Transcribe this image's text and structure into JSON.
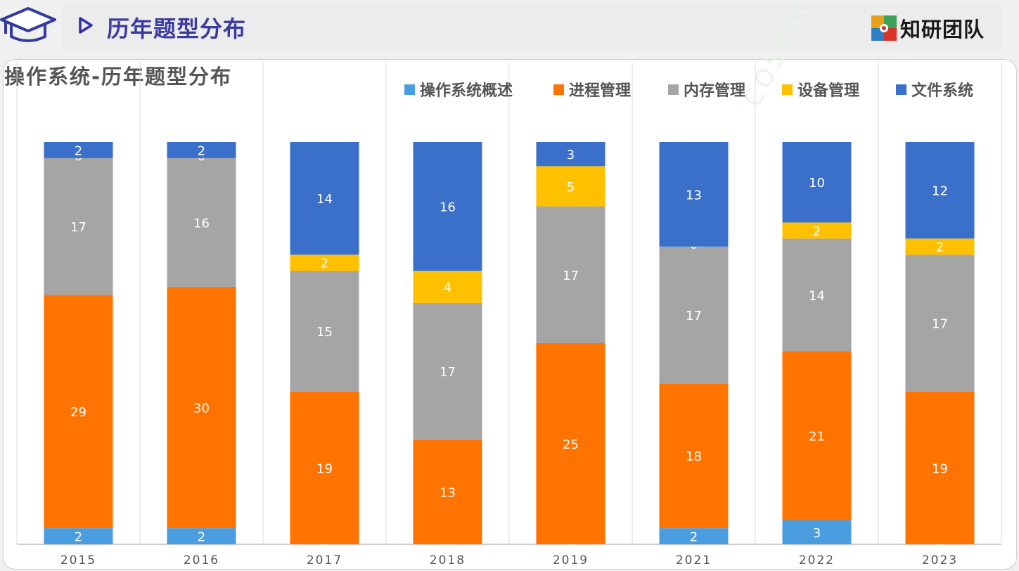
{
  "header": {
    "title": "历年题型分布",
    "brand_name": "知研团队"
  },
  "watermark_text": "COSKAOEGI",
  "chart_data": {
    "type": "bar",
    "stacked": true,
    "title": "操作系统-历年题型分布",
    "xlabel": "",
    "ylabel": "",
    "grid": false,
    "legend_position": "top-right",
    "categories": [
      "2015",
      "2016",
      "2017",
      "2018",
      "2019",
      "2021",
      "2022",
      "2023"
    ],
    "series": [
      {
        "name": "操作系统概述",
        "color": "#4a9ee0",
        "values": [
          2,
          2,
          0,
          0,
          0,
          2,
          3,
          0
        ]
      },
      {
        "name": "进程管理",
        "color": "#ff7300",
        "values": [
          29,
          30,
          19,
          13,
          25,
          18,
          21,
          19
        ]
      },
      {
        "name": "内存管理",
        "color": "#a5a5a5",
        "values": [
          17,
          16,
          15,
          17,
          17,
          17,
          14,
          17
        ]
      },
      {
        "name": "设备管理",
        "color": "#ffc000",
        "values": [
          0,
          0,
          2,
          4,
          5,
          0,
          2,
          2
        ]
      },
      {
        "name": "文件系统",
        "color": "#3a70c9",
        "values": [
          2,
          2,
          14,
          16,
          3,
          13,
          10,
          12
        ]
      }
    ]
  }
}
